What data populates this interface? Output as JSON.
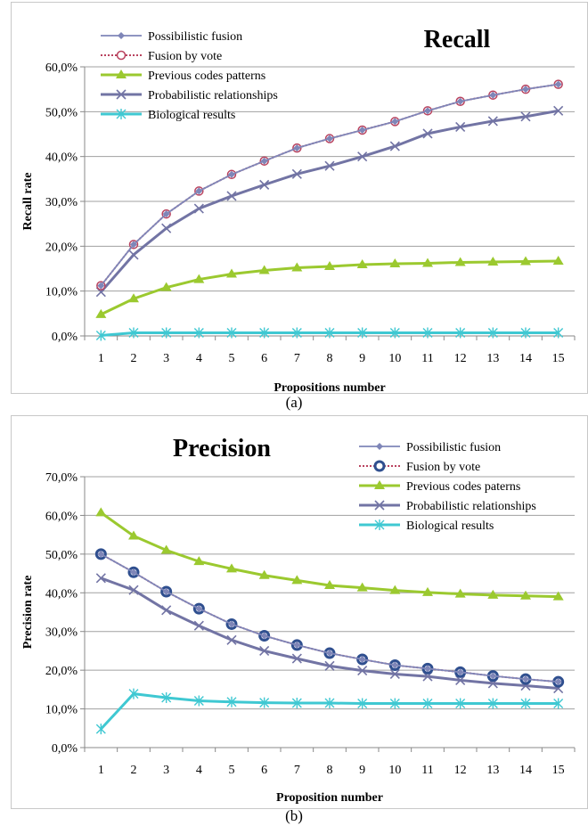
{
  "captions": [
    "(a)",
    "(b)"
  ],
  "chart_data": [
    {
      "type": "line",
      "title": "Recall",
      "xlabel": "Propositions number",
      "ylabel": "Recall rate",
      "ylim": [
        0,
        60
      ],
      "yticks": [
        "0,0%",
        "10,0%",
        "20,0%",
        "30,0%",
        "40,0%",
        "50,0%",
        "60,0%"
      ],
      "categories": [
        "1",
        "2",
        "3",
        "4",
        "5",
        "6",
        "7",
        "8",
        "9",
        "10",
        "11",
        "12",
        "13",
        "14",
        "15"
      ],
      "grid": "horizontal",
      "legend_position": "top-left",
      "series": [
        {
          "name": "Possibilistic fusion",
          "color": "#7f86b8",
          "marker": "diamond",
          "dash": false,
          "values": [
            11.2,
            20.4,
            27.2,
            32.3,
            36.0,
            39.0,
            41.9,
            44.0,
            45.9,
            47.8,
            50.2,
            52.3,
            53.7,
            55.0,
            56.1
          ]
        },
        {
          "name": "Fusion by vote",
          "color": "#b9435f",
          "marker": "circle",
          "dash": true,
          "values": [
            11.2,
            20.4,
            27.2,
            32.3,
            36.0,
            39.0,
            41.9,
            44.0,
            45.9,
            47.8,
            50.2,
            52.3,
            53.7,
            55.0,
            56.1
          ]
        },
        {
          "name": "Previous codes patterns",
          "color": "#9bc92f",
          "marker": "triangle",
          "dash": false,
          "values": [
            4.8,
            8.3,
            10.8,
            12.6,
            13.8,
            14.6,
            15.2,
            15.5,
            15.9,
            16.1,
            16.2,
            16.4,
            16.5,
            16.6,
            16.7
          ]
        },
        {
          "name": "Probabilistic relationships",
          "color": "#7274a4",
          "marker": "x",
          "dash": false,
          "values": [
            9.8,
            18.1,
            24.0,
            28.4,
            31.2,
            33.7,
            36.1,
            37.9,
            40.0,
            42.3,
            45.1,
            46.6,
            47.9,
            48.9,
            50.2
          ]
        },
        {
          "name": "Biological results",
          "color": "#3fc8d2",
          "marker": "star",
          "dash": false,
          "values": [
            0.1,
            0.7,
            0.7,
            0.7,
            0.7,
            0.7,
            0.7,
            0.7,
            0.7,
            0.7,
            0.7,
            0.7,
            0.7,
            0.7,
            0.7
          ]
        }
      ]
    },
    {
      "type": "line",
      "title": "Precision",
      "xlabel": "Proposition number",
      "ylabel": "Precision rate",
      "ylim": [
        0,
        70
      ],
      "yticks": [
        "0,0%",
        "10,0%",
        "20,0%",
        "30,0%",
        "40,0%",
        "50,0%",
        "60,0%",
        "70,0%"
      ],
      "categories": [
        "1",
        "2",
        "3",
        "4",
        "5",
        "6",
        "7",
        "8",
        "9",
        "10",
        "11",
        "12",
        "13",
        "14",
        "15"
      ],
      "grid": "horizontal",
      "legend_position": "top-right",
      "series": [
        {
          "name": "Possibilistic fusion",
          "color": "#7f86b8",
          "marker": "diamond",
          "dash": false,
          "values": [
            50.0,
            45.3,
            40.3,
            35.9,
            31.9,
            28.9,
            26.5,
            24.4,
            22.8,
            21.3,
            20.4,
            19.5,
            18.5,
            17.7,
            17.0
          ]
        },
        {
          "name": "Fusion by vote",
          "color": "#b9435f",
          "marker": "circle-bold",
          "dash": true,
          "values": [
            50.0,
            45.3,
            40.3,
            35.9,
            31.9,
            28.9,
            26.5,
            24.4,
            22.8,
            21.3,
            20.4,
            19.5,
            18.5,
            17.7,
            17.0
          ]
        },
        {
          "name": "Previous codes paterns",
          "color": "#9bc92f",
          "marker": "triangle",
          "dash": false,
          "values": [
            60.7,
            54.7,
            51.0,
            48.1,
            46.2,
            44.5,
            43.2,
            41.9,
            41.3,
            40.6,
            40.1,
            39.7,
            39.4,
            39.2,
            39.0
          ]
        },
        {
          "name": "Probabilistic relationships",
          "color": "#7274a4",
          "marker": "x",
          "dash": false,
          "values": [
            43.8,
            40.7,
            35.5,
            31.5,
            27.8,
            25.0,
            23.0,
            21.1,
            19.9,
            19.0,
            18.4,
            17.4,
            16.6,
            16.0,
            15.3
          ]
        },
        {
          "name": "Biological results",
          "color": "#3fc8d2",
          "marker": "star",
          "dash": false,
          "values": [
            4.8,
            13.9,
            12.9,
            12.1,
            11.8,
            11.6,
            11.5,
            11.5,
            11.4,
            11.4,
            11.4,
            11.4,
            11.4,
            11.4,
            11.4
          ]
        }
      ]
    }
  ]
}
